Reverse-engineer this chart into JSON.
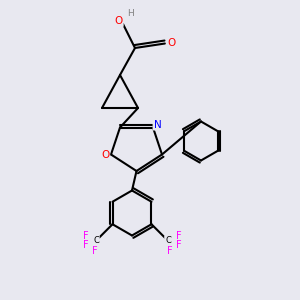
{
  "background_color": "#e8e8f0",
  "bond_color": "#000000",
  "atom_colors": {
    "O": "#ff0000",
    "N": "#0000ff",
    "F": "#ff00ff",
    "H": "#808080",
    "C": "#000000"
  },
  "figsize": [
    3.0,
    3.0
  ],
  "dpi": 100
}
